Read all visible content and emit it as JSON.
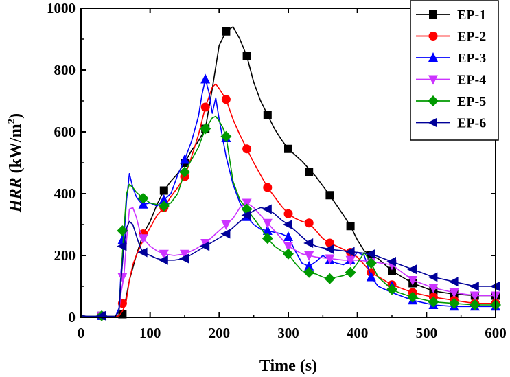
{
  "chart_data": {
    "type": "line",
    "xlabel": "Time (s)",
    "ylabel": "HRR (kW/m²)",
    "ylabel_parts": {
      "italic": "HRR",
      "rest": " (kW/m",
      "sup": "2",
      "close": ")"
    },
    "xlim": [
      0,
      600
    ],
    "ylim": [
      0,
      1000
    ],
    "xticks": [
      0,
      100,
      200,
      300,
      400,
      500,
      600
    ],
    "yticks": [
      0,
      200,
      400,
      600,
      800,
      1000
    ],
    "legend_position": "top-right",
    "series": [
      {
        "name": "EP-1",
        "color": "#000000",
        "marker": "square",
        "x": [
          0,
          10,
          20,
          30,
          40,
          50,
          55,
          60,
          65,
          70,
          75,
          80,
          90,
          100,
          110,
          120,
          130,
          140,
          150,
          160,
          170,
          180,
          190,
          200,
          210,
          220,
          230,
          240,
          250,
          260,
          270,
          280,
          290,
          300,
          320,
          340,
          360,
          380,
          390,
          400,
          410,
          420,
          430,
          450,
          480,
          510,
          540,
          570,
          600
        ],
        "y": [
          5,
          3,
          3,
          5,
          3,
          3,
          5,
          10,
          60,
          120,
          160,
          200,
          270,
          310,
          365,
          410,
          440,
          465,
          500,
          540,
          570,
          610,
          740,
          880,
          925,
          940,
          900,
          845,
          760,
          700,
          655,
          610,
          575,
          545,
          505,
          455,
          395,
          330,
          295,
          250,
          215,
          200,
          190,
          150,
          110,
          85,
          75,
          70,
          70
        ],
        "marker_x": [
          30,
          60,
          120,
          150,
          180,
          210,
          240,
          270,
          300,
          330,
          360,
          390,
          420,
          450,
          480,
          510,
          540,
          570,
          600
        ],
        "marker_y": [
          5,
          10,
          410,
          500,
          610,
          925,
          845,
          655,
          545,
          470,
          395,
          295,
          200,
          150,
          110,
          85,
          75,
          70,
          70
        ]
      },
      {
        "name": "EP-2",
        "color": "#ff0000",
        "marker": "circle",
        "x": [
          0,
          10,
          20,
          30,
          40,
          50,
          55,
          60,
          65,
          70,
          75,
          80,
          90,
          100,
          110,
          120,
          130,
          140,
          150,
          160,
          170,
          180,
          190,
          195,
          200,
          210,
          220,
          230,
          240,
          250,
          260,
          270,
          280,
          290,
          300,
          310,
          320,
          330,
          340,
          350,
          360,
          380,
          400,
          420,
          450,
          480,
          510,
          540,
          570,
          600
        ],
        "y": [
          5,
          3,
          3,
          5,
          3,
          3,
          5,
          20,
          45,
          120,
          170,
          200,
          250,
          290,
          330,
          355,
          390,
          420,
          455,
          520,
          590,
          680,
          745,
          755,
          740,
          705,
          640,
          590,
          545,
          500,
          460,
          420,
          390,
          360,
          335,
          320,
          310,
          305,
          280,
          255,
          240,
          220,
          195,
          145,
          105,
          80,
          65,
          55,
          45,
          45
        ],
        "marker_x": [
          30,
          60,
          90,
          120,
          150,
          180,
          210,
          240,
          270,
          300,
          330,
          360,
          390,
          420,
          450,
          480,
          510,
          540,
          570,
          600
        ],
        "marker_y": [
          5,
          45,
          270,
          355,
          455,
          680,
          705,
          545,
          420,
          335,
          305,
          240,
          210,
          145,
          105,
          80,
          65,
          55,
          45,
          45
        ]
      },
      {
        "name": "EP-3",
        "color": "#0000ff",
        "marker": "triangle-up",
        "x": [
          0,
          10,
          20,
          30,
          40,
          50,
          55,
          58,
          62,
          66,
          70,
          75,
          80,
          85,
          90,
          100,
          110,
          120,
          130,
          140,
          150,
          160,
          170,
          175,
          180,
          185,
          190,
          195,
          200,
          205,
          210,
          220,
          230,
          240,
          250,
          260,
          270,
          280,
          290,
          300,
          310,
          320,
          330,
          340,
          350,
          360,
          370,
          380,
          390,
          400,
          410,
          420,
          430,
          450,
          480,
          510,
          540,
          570,
          600
        ],
        "y": [
          5,
          3,
          3,
          5,
          3,
          3,
          30,
          150,
          250,
          380,
          465,
          420,
          390,
          375,
          365,
          370,
          360,
          380,
          400,
          460,
          510,
          570,
          650,
          720,
          770,
          730,
          660,
          710,
          640,
          580,
          520,
          430,
          370,
          325,
          300,
          285,
          280,
          275,
          270,
          260,
          215,
          175,
          165,
          180,
          200,
          185,
          175,
          170,
          185,
          210,
          200,
          130,
          100,
          80,
          55,
          40,
          35,
          35,
          35
        ],
        "marker_x": [
          30,
          60,
          90,
          120,
          150,
          180,
          210,
          240,
          270,
          300,
          330,
          360,
          390,
          420,
          450,
          480,
          510,
          540,
          570,
          600
        ],
        "marker_y": [
          5,
          250,
          365,
          380,
          510,
          770,
          580,
          325,
          280,
          260,
          165,
          185,
          185,
          130,
          100,
          55,
          40,
          35,
          35,
          35
        ]
      },
      {
        "name": "EP-4",
        "color": "#cc33ff",
        "marker": "triangle-down",
        "x": [
          0,
          10,
          20,
          30,
          40,
          50,
          55,
          58,
          62,
          66,
          70,
          75,
          80,
          85,
          90,
          100,
          110,
          120,
          135,
          150,
          165,
          180,
          195,
          210,
          220,
          230,
          240,
          250,
          260,
          270,
          280,
          290,
          300,
          320,
          340,
          360,
          380,
          400,
          420,
          450,
          480,
          510,
          540,
          570,
          600
        ],
        "y": [
          5,
          3,
          3,
          5,
          3,
          3,
          20,
          80,
          130,
          250,
          350,
          355,
          325,
          280,
          255,
          230,
          215,
          205,
          200,
          205,
          220,
          240,
          270,
          300,
          320,
          355,
          370,
          355,
          330,
          305,
          280,
          255,
          230,
          205,
          195,
          190,
          185,
          185,
          180,
          170,
          120,
          95,
          80,
          70,
          70
        ],
        "marker_x": [
          30,
          60,
          90,
          120,
          150,
          180,
          210,
          240,
          270,
          300,
          330,
          360,
          390,
          420,
          450,
          480,
          510,
          540,
          570,
          600
        ],
        "marker_y": [
          5,
          130,
          255,
          205,
          205,
          240,
          300,
          370,
          305,
          230,
          200,
          190,
          185,
          180,
          170,
          120,
          95,
          80,
          70,
          70
        ]
      },
      {
        "name": "EP-5",
        "color": "#009900",
        "marker": "diamond",
        "x": [
          0,
          10,
          20,
          30,
          40,
          50,
          55,
          58,
          62,
          66,
          70,
          75,
          80,
          85,
          90,
          100,
          110,
          120,
          130,
          140,
          150,
          160,
          170,
          180,
          190,
          195,
          200,
          205,
          210,
          220,
          230,
          240,
          250,
          260,
          270,
          280,
          290,
          300,
          310,
          320,
          330,
          340,
          350,
          360,
          370,
          380,
          390,
          400,
          410,
          420,
          430,
          440,
          450,
          460,
          480,
          510,
          540,
          570,
          600
        ],
        "y": [
          5,
          3,
          3,
          5,
          3,
          3,
          20,
          130,
          280,
          400,
          430,
          420,
          405,
          395,
          385,
          370,
          365,
          360,
          370,
          400,
          470,
          510,
          550,
          610,
          645,
          650,
          635,
          615,
          585,
          440,
          380,
          350,
          320,
          290,
          255,
          230,
          215,
          205,
          175,
          150,
          145,
          140,
          130,
          125,
          130,
          135,
          145,
          175,
          210,
          175,
          130,
          110,
          90,
          80,
          65,
          50,
          45,
          40,
          40
        ],
        "marker_x": [
          30,
          60,
          90,
          120,
          150,
          180,
          210,
          240,
          270,
          300,
          330,
          360,
          390,
          420,
          450,
          480,
          510,
          540,
          570,
          600
        ],
        "marker_y": [
          5,
          280,
          385,
          360,
          470,
          610,
          585,
          350,
          255,
          205,
          145,
          125,
          145,
          175,
          90,
          65,
          50,
          45,
          40,
          40
        ]
      },
      {
        "name": "EP-6",
        "color": "#000099",
        "marker": "triangle-left",
        "x": [
          0,
          10,
          20,
          30,
          40,
          50,
          55,
          58,
          62,
          66,
          70,
          75,
          80,
          85,
          90,
          100,
          110,
          120,
          135,
          150,
          165,
          180,
          195,
          210,
          225,
          240,
          250,
          260,
          270,
          280,
          290,
          300,
          310,
          320,
          330,
          340,
          350,
          360,
          380,
          400,
          420,
          450,
          480,
          510,
          540,
          570,
          600
        ],
        "y": [
          5,
          3,
          3,
          5,
          3,
          3,
          20,
          120,
          230,
          290,
          310,
          300,
          265,
          230,
          210,
          200,
          190,
          185,
          185,
          190,
          210,
          230,
          250,
          270,
          300,
          330,
          345,
          355,
          350,
          335,
          315,
          300,
          280,
          260,
          240,
          230,
          225,
          220,
          215,
          210,
          205,
          180,
          155,
          130,
          115,
          100,
          100
        ],
        "marker_x": [
          30,
          60,
          90,
          120,
          150,
          180,
          210,
          240,
          270,
          300,
          330,
          360,
          390,
          420,
          450,
          480,
          510,
          540,
          570,
          600
        ],
        "marker_y": [
          5,
          230,
          210,
          185,
          190,
          230,
          270,
          330,
          350,
          300,
          240,
          220,
          212,
          205,
          180,
          155,
          130,
          115,
          100,
          100
        ]
      }
    ]
  }
}
